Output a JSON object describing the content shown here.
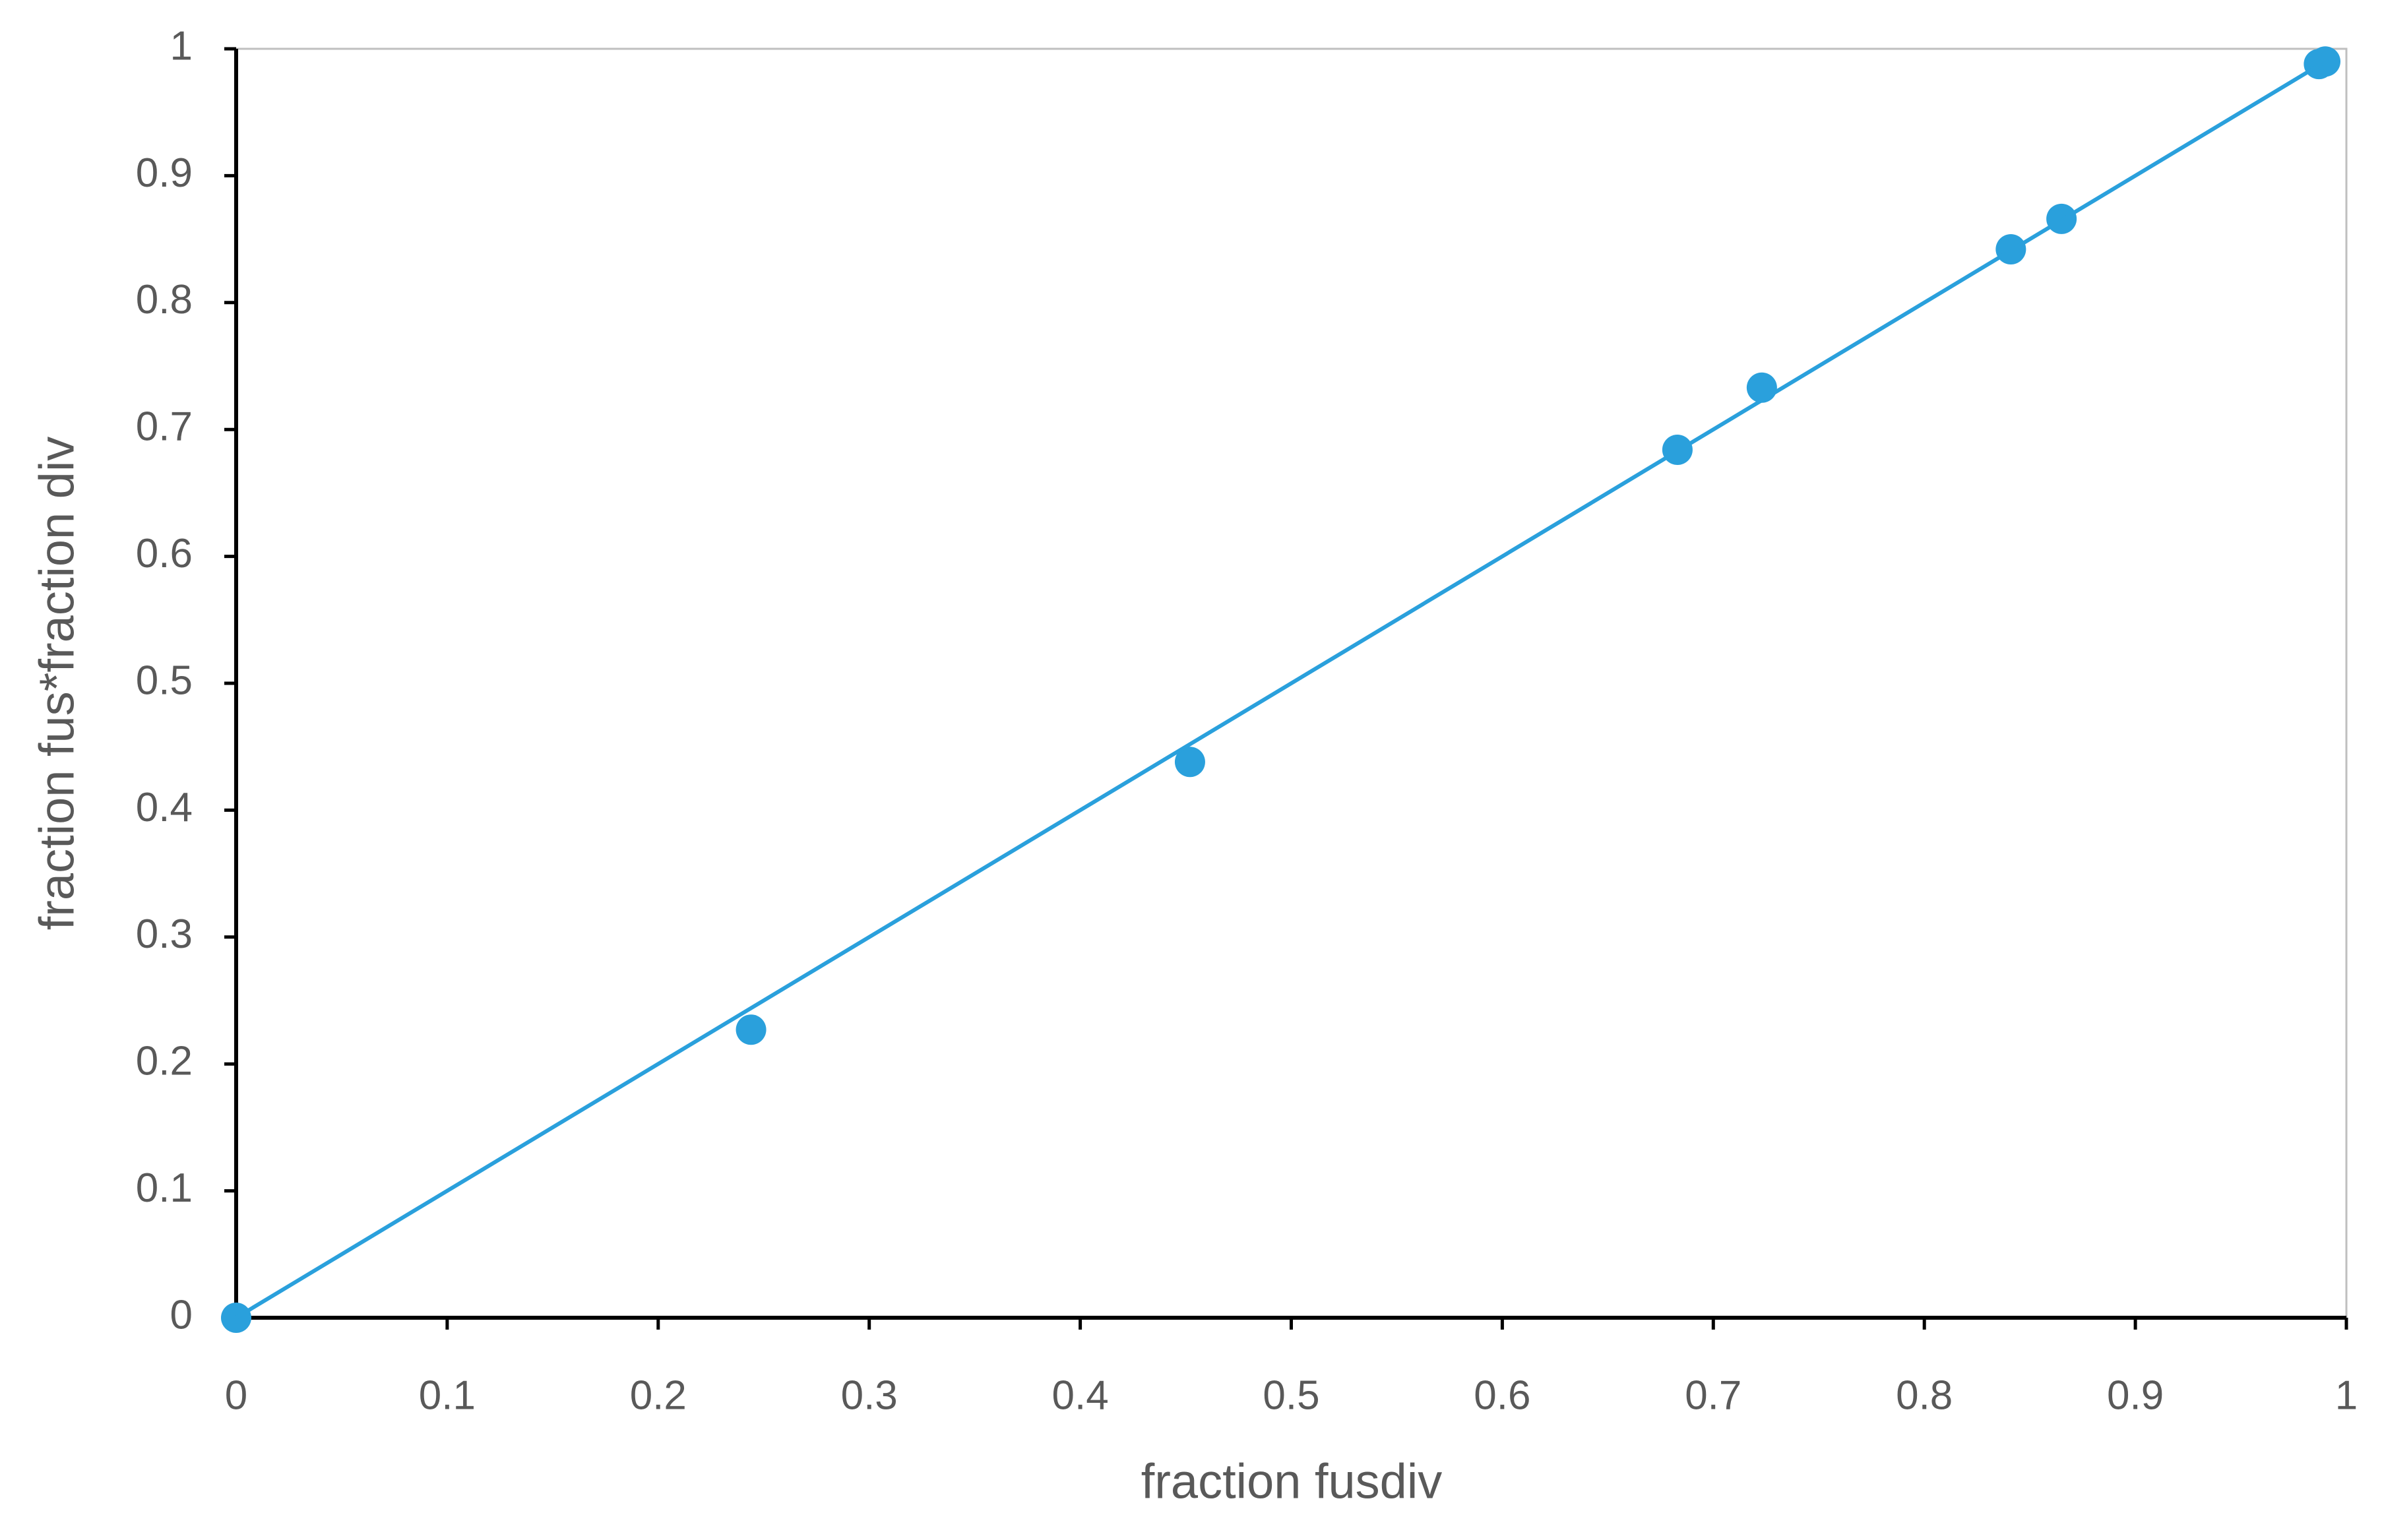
{
  "chart_data": {
    "type": "scatter",
    "x_label": "fraction fusdiv",
    "y_label": "fraction fus*fraction div",
    "xlim": [
      0,
      1
    ],
    "ylim": [
      0,
      1
    ],
    "xticks": [
      0,
      0.1,
      0.2,
      0.3,
      0.4,
      0.5,
      0.6,
      0.7,
      0.8,
      0.9,
      1
    ],
    "yticks": [
      0,
      0.1,
      0.2,
      0.3,
      0.4,
      0.5,
      0.6,
      0.7,
      0.8,
      0.9,
      1
    ],
    "grid": false,
    "series": [
      {
        "color": "#2aa0dc",
        "style": "markers",
        "x": [
          0,
          0.244,
          0.452,
          0.683,
          0.723,
          0.841,
          0.865,
          0.987,
          0.99
        ],
        "values": [
          0,
          0.227,
          0.438,
          0.684,
          0.733,
          0.842,
          0.866,
          0.988,
          0.99
        ]
      },
      {
        "color": "#2aa0dc",
        "style": "line",
        "x": [
          0,
          0.99
        ],
        "values": [
          0,
          0.99
        ]
      }
    ]
  }
}
